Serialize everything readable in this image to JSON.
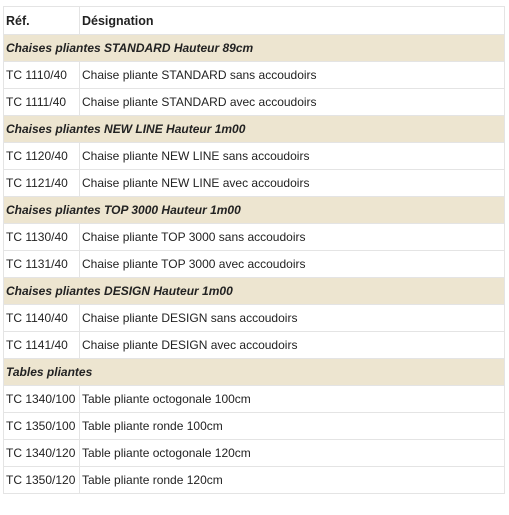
{
  "table": {
    "headers": {
      "ref": "Réf.",
      "designation": "Désignation"
    },
    "sections": [
      {
        "title": "Chaises pliantes STANDARD Hauteur 89cm",
        "rows": [
          {
            "ref": "TC 1110/40",
            "designation": "Chaise pliante STANDARD sans accoudoirs"
          },
          {
            "ref": "TC 1111/40",
            "designation": "Chaise pliante STANDARD avec accoudoirs"
          }
        ]
      },
      {
        "title": "Chaises pliantes NEW LINE Hauteur 1m00",
        "rows": [
          {
            "ref": "TC 1120/40",
            "designation": "Chaise pliante NEW LINE sans accoudoirs"
          },
          {
            "ref": "TC 1121/40",
            "designation": "Chaise pliante NEW LINE avec accoudoirs"
          }
        ]
      },
      {
        "title": "Chaises pliantes TOP 3000 Hauteur 1m00",
        "rows": [
          {
            "ref": "TC 1130/40",
            "designation": "Chaise pliante TOP 3000 sans accoudoirs"
          },
          {
            "ref": "TC 1131/40",
            "designation": "Chaise pliante TOP 3000 avec accoudoirs"
          }
        ]
      },
      {
        "title": "Chaises pliantes DESIGN Hauteur 1m00",
        "rows": [
          {
            "ref": "TC 1140/40",
            "designation": "Chaise pliante DESIGN sans accoudoirs"
          },
          {
            "ref": "TC 1141/40",
            "designation": "Chaise pliante DESIGN avec accoudoirs"
          }
        ]
      },
      {
        "title": "Tables pliantes",
        "rows": [
          {
            "ref": "TC 1340/100",
            "designation": "Table pliante octogonale 100cm"
          },
          {
            "ref": "TC 1350/100",
            "designation": "Table pliante ronde 100cm"
          },
          {
            "ref": "TC 1340/120",
            "designation": "Table pliante octogonale 120cm"
          },
          {
            "ref": "TC 1350/120",
            "designation": "Table pliante ronde 120cm"
          }
        ]
      }
    ]
  }
}
